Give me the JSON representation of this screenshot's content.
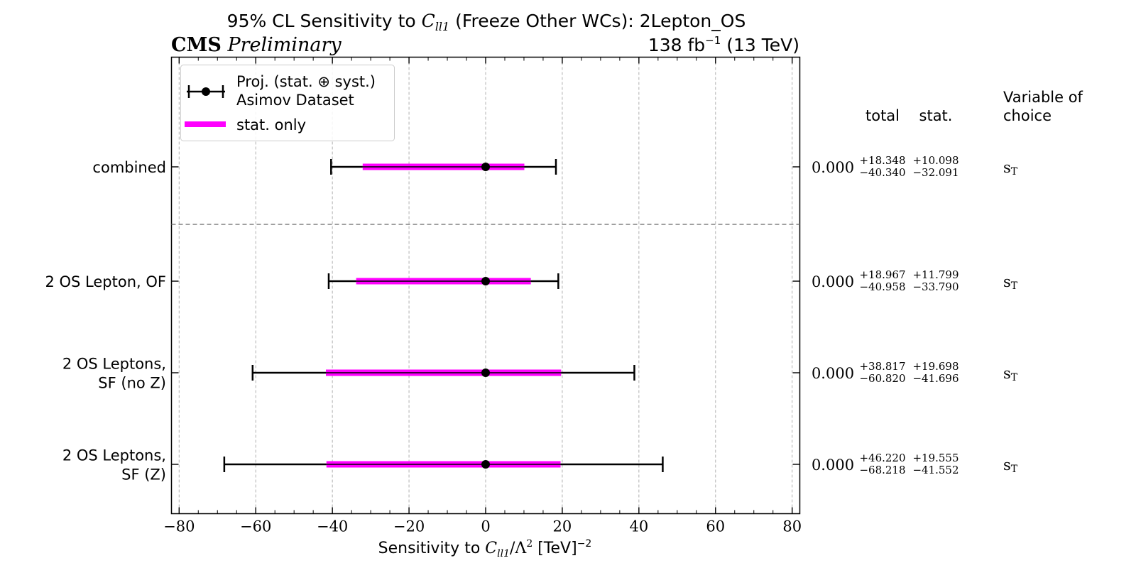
{
  "chart_data": {
    "type": "interval",
    "title_prefix": "95% CL Sensitivity to ",
    "title_symbol": "C",
    "title_subscript": "ll1",
    "title_suffix": " (Freeze Other WCs): 2Lepton_OS",
    "experiment": "CMS",
    "experiment_status": "Preliminary",
    "luminosity_prefix": "138 fb",
    "luminosity_exponent": "−1",
    "luminosity_suffix": " (13 TeV)",
    "xlabel_prefix": "Sensitivity to ",
    "xlabel_symbol": "C",
    "xlabel_subscript": "ll1",
    "xlabel_mid": "/Λ",
    "xlabel_power": "2",
    "xlabel_units": " [TeV]",
    "xlabel_units_power": "−2",
    "xlim": [
      -82,
      82
    ],
    "xticks": [
      -80,
      -60,
      -40,
      -20,
      0,
      20,
      40,
      60,
      80
    ],
    "xtick_labels": [
      "−80",
      "−60",
      "−40",
      "−20",
      "0",
      "20",
      "40",
      "60",
      "80"
    ],
    "grid": true,
    "legend_position": "top-left",
    "legend": {
      "proj_line1": "Proj. (stat. ⊕ syst.)",
      "proj_line2": "Asimov Dataset",
      "stat_label": "stat. only"
    },
    "table_headers": {
      "total": "total",
      "stat": "stat.",
      "variable_line1": "Variable of",
      "variable_line2": "choice"
    },
    "rows": [
      {
        "label_lines": [
          "combined"
        ],
        "central": 0.0,
        "central_text": "0.000",
        "total_hi": 18.348,
        "total_lo": -40.34,
        "stat_hi": 10.098,
        "stat_lo": -32.091,
        "total_hi_text": "+18.348",
        "total_lo_text": "−40.340",
        "stat_hi_text": "+10.098",
        "stat_lo_text": "−32.091",
        "variable": "s",
        "variable_sub": "T"
      },
      {
        "label_lines": [
          "2 OS Lepton, OF"
        ],
        "central": 0.0,
        "central_text": "0.000",
        "total_hi": 18.967,
        "total_lo": -40.958,
        "stat_hi": 11.799,
        "stat_lo": -33.79,
        "total_hi_text": "+18.967",
        "total_lo_text": "−40.958",
        "stat_hi_text": "+11.799",
        "stat_lo_text": "−33.790",
        "variable": "s",
        "variable_sub": "T"
      },
      {
        "label_lines": [
          "2 OS Leptons,",
          "SF (no Z)"
        ],
        "central": 0.0,
        "central_text": "0.000",
        "total_hi": 38.817,
        "total_lo": -60.82,
        "stat_hi": 19.698,
        "stat_lo": -41.696,
        "total_hi_text": "+38.817",
        "total_lo_text": "−60.820",
        "stat_hi_text": "+19.698",
        "stat_lo_text": "−41.696",
        "variable": "s",
        "variable_sub": "T"
      },
      {
        "label_lines": [
          "2 OS Leptons,",
          "SF (Z)"
        ],
        "central": 0.0,
        "central_text": "0.000",
        "total_hi": 46.22,
        "total_lo": -68.218,
        "stat_hi": 19.555,
        "stat_lo": -41.552,
        "total_hi_text": "+46.220",
        "total_lo_text": "−68.218",
        "stat_hi_text": "+19.555",
        "stat_lo_text": "−41.552",
        "variable": "s",
        "variable_sub": "T"
      }
    ],
    "colors": {
      "total": "#000000",
      "stat": "#ff00ff",
      "grid": "#b0b0b0",
      "separator": "#808080"
    }
  }
}
